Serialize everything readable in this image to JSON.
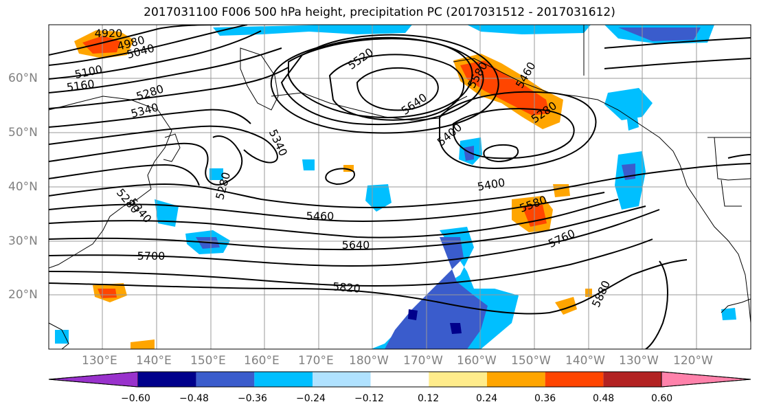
{
  "title": "2017031100 F006 500 hPa height, precipitation PC (2017031512 - 2017031612)",
  "lat_labels": [
    "60°N",
    "50°N",
    "40°N",
    "30°N",
    "20°N"
  ],
  "lon_labels": [
    "130°E",
    "140°E",
    "150°E",
    "160°E",
    "170°E",
    "180°W",
    "170°W",
    "160°W",
    "150°W",
    "140°W",
    "130°W",
    "120°W"
  ],
  "colorbar": {
    "ticks": [
      "−0.60",
      "−0.48",
      "−0.36",
      "−0.24",
      "−0.12",
      "0.12",
      "0.24",
      "0.36",
      "0.48",
      "0.60"
    ],
    "colors": [
      "#9932cc",
      "#00008b",
      "#3a5ccc",
      "#00bfff",
      "#b0e2ff",
      "#ffffff",
      "#ffec8b",
      "#ffa500",
      "#ff4500",
      "#b22222",
      "#ff82ab"
    ]
  },
  "contour_labels": [
    "4920",
    "4980",
    "5040",
    "5100",
    "5160",
    "5280",
    "5340",
    "5520",
    "5640",
    "5580",
    "5460",
    "5280",
    "5340",
    "5400",
    "5400",
    "5580",
    "5280",
    "5340",
    "5280",
    "5460",
    "5640",
    "5700",
    "5820",
    "5760",
    "5880"
  ]
}
